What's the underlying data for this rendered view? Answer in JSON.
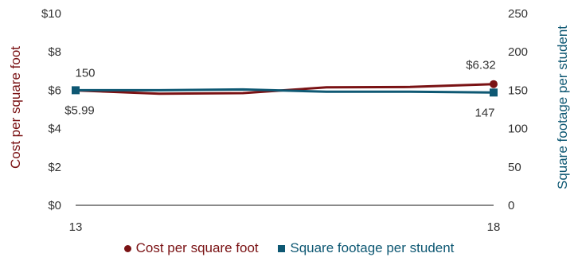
{
  "chart_data": {
    "type": "line",
    "x": [
      "13",
      "14",
      "15",
      "16",
      "17",
      "18"
    ],
    "x_tick_labels": [
      "13",
      "18"
    ],
    "series": [
      {
        "name": "Cost per square foot",
        "axis": "left",
        "color": "#7a1214",
        "marker": "circle",
        "values": [
          5.99,
          5.82,
          5.85,
          6.15,
          6.17,
          6.32
        ]
      },
      {
        "name": "Square footage per student",
        "axis": "right",
        "color": "#0e5873",
        "marker": "square",
        "values": [
          150,
          150,
          151,
          148,
          148,
          147
        ]
      }
    ],
    "left_axis": {
      "label": "Cost per square foot",
      "ylim": [
        0,
        10
      ],
      "ticks": [
        0,
        2,
        4,
        6,
        8,
        10
      ],
      "tick_labels": [
        "$0",
        "$2",
        "$4",
        "$6",
        "$8",
        "$10"
      ]
    },
    "right_axis": {
      "label": "Square footage per student",
      "ylim": [
        0,
        250
      ],
      "ticks": [
        0,
        50,
        100,
        150,
        200,
        250
      ],
      "tick_labels": [
        "0",
        "50",
        "100",
        "150",
        "200",
        "250"
      ]
    },
    "data_labels": {
      "cost_end": "$6.32",
      "cost_start": "$5.99",
      "sqft_start": "150",
      "sqft_end": "147"
    },
    "grid": false,
    "legend_position": "bottom"
  }
}
